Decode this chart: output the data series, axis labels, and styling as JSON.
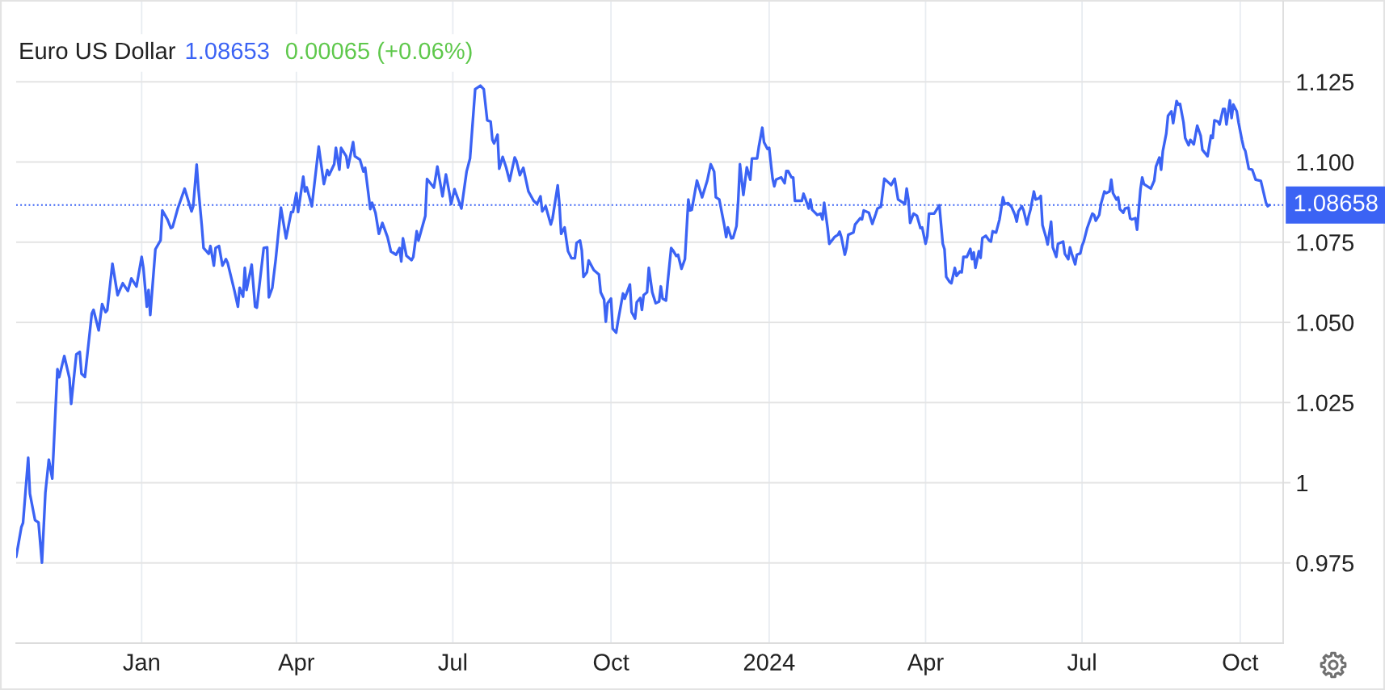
{
  "chart_data": {
    "type": "line",
    "title": "Euro US Dollar",
    "annotations": [
      "1.08653",
      "0.00065 (+0.06%)"
    ],
    "x": [
      "2022-10-20",
      "2022-10-23",
      "2022-10-24",
      "2022-10-27",
      "2022-10-28",
      "2022-10-31",
      "2022-11-02",
      "2022-11-04",
      "2022-11-06",
      "2022-11-08",
      "2022-11-10",
      "2022-11-13",
      "2022-11-14",
      "2022-11-17",
      "2022-11-20",
      "2022-11-21",
      "2022-11-24",
      "2022-11-26",
      "2022-11-27",
      "2022-11-29",
      "2022-12-03",
      "2022-12-04",
      "2022-12-07",
      "2022-12-09",
      "2022-12-11",
      "2022-12-12",
      "2022-12-15",
      "2022-12-18",
      "2022-12-21",
      "2022-12-24",
      "2022-12-26",
      "2022-12-29",
      "2023-01-01",
      "2023-01-02",
      "2023-01-04",
      "2023-01-05",
      "2023-01-06",
      "2023-01-09",
      "2023-01-12",
      "2023-01-13",
      "2023-01-16",
      "2023-01-18",
      "2023-01-19",
      "2023-01-22",
      "2023-01-26",
      "2023-01-30",
      "2023-01-31",
      "2023-02-02",
      "2023-02-03",
      "2023-02-05",
      "2023-02-06",
      "2023-02-09",
      "2023-02-10",
      "2023-02-12",
      "2023-02-13",
      "2023-02-15",
      "2023-02-17",
      "2023-02-19",
      "2023-02-20",
      "2023-02-22",
      "2023-02-24",
      "2023-02-26",
      "2023-02-27",
      "2023-03-01",
      "2023-03-02",
      "2023-03-03",
      "2023-03-06",
      "2023-03-08",
      "2023-03-09",
      "2023-03-13",
      "2023-03-15",
      "2023-03-16",
      "2023-03-18",
      "2023-03-20",
      "2023-03-23",
      "2023-03-26",
      "2023-03-29",
      "2023-03-30",
      "2023-04-01",
      "2023-04-02",
      "2023-04-05",
      "2023-04-06",
      "2023-04-07",
      "2023-04-10",
      "2023-04-14",
      "2023-04-17",
      "2023-04-19",
      "2023-04-20",
      "2023-04-23",
      "2023-04-24",
      "2023-04-26",
      "2023-04-27",
      "2023-04-30",
      "2023-05-01",
      "2023-05-04",
      "2023-05-05",
      "2023-05-08",
      "2023-05-10",
      "2023-05-11",
      "2023-05-14",
      "2023-05-15",
      "2023-05-17",
      "2023-05-19",
      "2023-05-21",
      "2023-05-24",
      "2023-05-26",
      "2023-05-29",
      "2023-05-31",
      "2023-06-01",
      "2023-06-02",
      "2023-06-04",
      "2023-06-07",
      "2023-06-08",
      "2023-06-10",
      "2023-06-11",
      "2023-06-15",
      "2023-06-16",
      "2023-06-20",
      "2023-06-22",
      "2023-06-25",
      "2023-06-27",
      "2023-06-29",
      "2023-06-30",
      "2023-07-02",
      "2023-07-06",
      "2023-07-09",
      "2023-07-11",
      "2023-07-14",
      "2023-07-17",
      "2023-07-19",
      "2023-07-21",
      "2023-07-23",
      "2023-07-24",
      "2023-07-25",
      "2023-07-27",
      "2023-07-28",
      "2023-07-30",
      "2023-08-01",
      "2023-08-03",
      "2023-08-06",
      "2023-08-07",
      "2023-08-09",
      "2023-08-11",
      "2023-08-14",
      "2023-08-17",
      "2023-08-19",
      "2023-08-21",
      "2023-08-22",
      "2023-08-24",
      "2023-08-27",
      "2023-08-28",
      "2023-08-31",
      "2023-09-01",
      "2023-09-02",
      "2023-09-04",
      "2023-09-06",
      "2023-09-08",
      "2023-09-10",
      "2023-09-11",
      "2023-09-13",
      "2023-09-14",
      "2023-09-15",
      "2023-09-17",
      "2023-09-18",
      "2023-09-21",
      "2023-09-24",
      "2023-09-25",
      "2023-09-27",
      "2023-09-28",
      "2023-09-29",
      "2023-10-01",
      "2023-10-02",
      "2023-10-04",
      "2023-10-05",
      "2023-10-08",
      "2023-10-09",
      "2023-10-12",
      "2023-10-13",
      "2023-10-15",
      "2023-10-16",
      "2023-10-18",
      "2023-10-19",
      "2023-10-20",
      "2023-10-22",
      "2023-10-23",
      "2023-10-25",
      "2023-10-27",
      "2023-10-29",
      "2023-10-30",
      "2023-10-31",
      "2023-11-02",
      "2023-11-03",
      "2023-11-05",
      "2023-11-06",
      "2023-11-08",
      "2023-11-09",
      "2023-11-11",
      "2023-11-13",
      "2023-11-15",
      "2023-11-16",
      "2023-11-17",
      "2023-11-20",
      "2023-11-23",
      "2023-11-26",
      "2023-11-28",
      "2023-11-30",
      "2023-12-01",
      "2023-12-03",
      "2023-12-06",
      "2023-12-07",
      "2023-12-08",
      "2023-12-10",
      "2023-12-11",
      "2023-12-13",
      "2023-12-14",
      "2023-12-15",
      "2023-12-17",
      "2023-12-19",
      "2023-12-21",
      "2023-12-22",
      "2023-12-25",
      "2023-12-26",
      "2023-12-28",
      "2023-12-29",
      "2023-12-31",
      "2024-01-01",
      "2024-01-03",
      "2024-01-04",
      "2024-01-05",
      "2024-01-08",
      "2024-01-10",
      "2024-01-11",
      "2024-01-12",
      "2024-01-14",
      "2024-01-15",
      "2024-01-16",
      "2024-01-20",
      "2024-01-21",
      "2024-01-22",
      "2024-01-24",
      "2024-01-25",
      "2024-01-26",
      "2024-01-29",
      "2024-01-31",
      "2024-02-01",
      "2024-02-02",
      "2024-02-04",
      "2024-02-05",
      "2024-02-08",
      "2024-02-10",
      "2024-02-11",
      "2024-02-12",
      "2024-02-14",
      "2024-02-15",
      "2024-02-16",
      "2024-02-19",
      "2024-02-20",
      "2024-02-23",
      "2024-02-24",
      "2024-02-25",
      "2024-02-28",
      "2024-03-01",
      "2024-03-03",
      "2024-03-04",
      "2024-03-06",
      "2024-03-08",
      "2024-03-10",
      "2024-03-12",
      "2024-03-14",
      "2024-03-16",
      "2024-03-18",
      "2024-03-20",
      "2024-03-21",
      "2024-03-22",
      "2024-03-23",
      "2024-03-25",
      "2024-03-27",
      "2024-03-29",
      "2024-03-30",
      "2024-04-01",
      "2024-04-02",
      "2024-04-03",
      "2024-04-06",
      "2024-04-09",
      "2024-04-11",
      "2024-04-12",
      "2024-04-13",
      "2024-04-15",
      "2024-04-16",
      "2024-04-18",
      "2024-04-19",
      "2024-04-21",
      "2024-04-22",
      "2024-04-23",
      "2024-04-25",
      "2024-04-27",
      "2024-04-28",
      "2024-04-29",
      "2024-04-30",
      "2024-05-02",
      "2024-05-03",
      "2024-05-04",
      "2024-05-06",
      "2024-05-08",
      "2024-05-09",
      "2024-05-10",
      "2024-05-12",
      "2024-05-14",
      "2024-05-16",
      "2024-05-17",
      "2024-05-19",
      "2024-05-21",
      "2024-05-23",
      "2024-05-24",
      "2024-05-25",
      "2024-05-27",
      "2024-05-28",
      "2024-05-30",
      "2024-05-31",
      "2024-06-01",
      "2024-06-03",
      "2024-06-04",
      "2024-06-06",
      "2024-06-07",
      "2024-06-08",
      "2024-06-10",
      "2024-06-11",
      "2024-06-13",
      "2024-06-14",
      "2024-06-16",
      "2024-06-17",
      "2024-06-20",
      "2024-06-21",
      "2024-06-23",
      "2024-06-24",
      "2024-06-25",
      "2024-06-27",
      "2024-06-28",
      "2024-06-30",
      "2024-07-01",
      "2024-07-02",
      "2024-07-04",
      "2024-07-07",
      "2024-07-08",
      "2024-07-09",
      "2024-07-11",
      "2024-07-12",
      "2024-07-14",
      "2024-07-15",
      "2024-07-17",
      "2024-07-18",
      "2024-07-19",
      "2024-07-21",
      "2024-07-22",
      "2024-07-23",
      "2024-07-25",
      "2024-07-26",
      "2024-07-28",
      "2024-07-29",
      "2024-07-30",
      "2024-08-01",
      "2024-08-02",
      "2024-08-04",
      "2024-08-05",
      "2024-08-06",
      "2024-08-08",
      "2024-08-10",
      "2024-08-12",
      "2024-08-13",
      "2024-08-15",
      "2024-08-16",
      "2024-08-17",
      "2024-08-19",
      "2024-08-20",
      "2024-08-22",
      "2024-08-23",
      "2024-08-25",
      "2024-08-26",
      "2024-08-27",
      "2024-08-29",
      "2024-08-30",
      "2024-09-01",
      "2024-09-02",
      "2024-09-04",
      "2024-09-06",
      "2024-09-08",
      "2024-09-09",
      "2024-09-12",
      "2024-09-14",
      "2024-09-15",
      "2024-09-16",
      "2024-09-18",
      "2024-09-19",
      "2024-09-21",
      "2024-09-22",
      "2024-09-23",
      "2024-09-25",
      "2024-09-26",
      "2024-09-27",
      "2024-09-29",
      "2024-09-30",
      "2024-10-02",
      "2024-10-03",
      "2024-10-04",
      "2024-10-06",
      "2024-10-08",
      "2024-10-10",
      "2024-10-13",
      "2024-10-16",
      "2024-10-17",
      "2024-10-18"
    ],
    "series": [
      {
        "color": "#3b63f4",
        "values": [
          0.9769,
          0.9861,
          0.9875,
          1.0078,
          0.9966,
          0.9883,
          0.9876,
          0.9751,
          0.9969,
          1.0072,
          1.0013,
          1.0354,
          1.0329,
          1.0395,
          1.0326,
          1.0246,
          1.04,
          1.0408,
          1.034,
          1.033,
          1.0528,
          1.0539,
          1.0475,
          1.0557,
          1.0532,
          1.0538,
          1.0683,
          1.0585,
          1.0622,
          1.0598,
          1.0637,
          1.0612,
          1.0704,
          1.067,
          1.0549,
          1.0601,
          1.0523,
          1.0728,
          1.0756,
          1.0849,
          1.0821,
          1.0794,
          1.0797,
          1.0855,
          1.0917,
          1.0846,
          1.0862,
          1.0992,
          1.0917,
          1.08,
          1.0732,
          1.0714,
          1.0738,
          1.0677,
          1.0732,
          1.0738,
          1.0677,
          1.0697,
          1.0686,
          1.0642,
          1.0598,
          1.0549,
          1.0608,
          1.058,
          1.067,
          1.0601,
          1.068,
          1.0549,
          1.0546,
          1.0732,
          1.0734,
          1.0578,
          1.0608,
          1.0697,
          1.0858,
          1.0762,
          1.0844,
          1.0844,
          1.0903,
          1.0844,
          1.0954,
          1.0908,
          1.0921,
          1.0862,
          1.1048,
          1.0931,
          1.0975,
          1.0959,
          1.0993,
          1.1044,
          1.0976,
          1.1044,
          1.1018,
          1.0983,
          1.1062,
          1.1018,
          1.1007,
          1.097,
          1.0982,
          1.0853,
          1.0873,
          1.0842,
          1.0776,
          1.081,
          1.0766,
          1.0721,
          1.0711,
          1.0732,
          1.069,
          1.0762,
          1.0708,
          1.0694,
          1.0704,
          1.0784,
          1.0755,
          1.0832,
          1.0947,
          1.092,
          1.0986,
          1.0893,
          1.0961,
          1.0903,
          1.0869,
          1.0915,
          1.0855,
          1.097,
          1.1011,
          1.1227,
          1.1238,
          1.1227,
          1.113,
          1.1126,
          1.1069,
          1.1058,
          1.1085,
          1.0979,
          1.1016,
          1.0983,
          1.0941,
          1.1014,
          1.1003,
          1.0959,
          1.0982,
          1.0908,
          1.0879,
          1.0869,
          1.0893,
          1.0846,
          1.0862,
          1.0805,
          1.0824,
          1.0927,
          1.0869,
          1.0776,
          1.0796,
          1.0722,
          1.07,
          1.07,
          1.0748,
          1.0755,
          1.0725,
          1.0642,
          1.0656,
          1.0693,
          1.0663,
          1.0649,
          1.0594,
          1.0571,
          1.0502,
          1.056,
          1.0574,
          1.048,
          1.0468,
          1.0501,
          1.059,
          1.0574,
          1.0618,
          1.0532,
          1.0512,
          1.0563,
          1.0576,
          1.0539,
          1.0585,
          1.0594,
          1.067,
          1.0594,
          1.056,
          1.0565,
          1.0612,
          1.0574,
          1.0568,
          1.0626,
          1.0732,
          1.0725,
          1.0707,
          1.0711,
          1.0667,
          1.0697,
          1.0883,
          1.0849,
          1.0851,
          1.0942,
          1.089,
          1.0942,
          1.0993,
          1.097,
          1.089,
          1.0883,
          1.08,
          1.0766,
          1.0796,
          1.0762,
          1.0763,
          1.08,
          1.0879,
          1.0993,
          1.0897,
          1.0983,
          1.0945,
          1.1011,
          1.1011,
          1.1048,
          1.1107,
          1.1062,
          1.1041,
          1.1044,
          1.0948,
          1.0924,
          1.0945,
          1.0952,
          1.0934,
          1.0972,
          1.0972,
          1.0952,
          1.0952,
          1.0879,
          1.0879,
          1.0901,
          1.0887,
          1.0855,
          1.0883,
          1.0851,
          1.0835,
          1.0839,
          1.0821,
          1.0873,
          1.0794,
          1.0745,
          1.0766,
          1.0773,
          1.0783,
          1.0766,
          1.0711,
          1.0732,
          1.0773,
          1.078,
          1.0805,
          1.0825,
          1.0821,
          1.0849,
          1.0842,
          1.0807,
          1.0838,
          1.0855,
          1.086,
          1.0948,
          1.0938,
          1.0928,
          1.0948,
          1.0883,
          1.0876,
          1.0869,
          1.0917,
          1.0883,
          1.081,
          1.0839,
          1.0832,
          1.0794,
          1.0796,
          1.0745,
          1.0769,
          1.0839,
          1.0839,
          1.0865,
          1.0745,
          1.0728,
          1.0642,
          1.0626,
          1.0622,
          1.067,
          1.0645,
          1.0659,
          1.0656,
          1.0704,
          1.0704,
          1.0729,
          1.0697,
          1.0718,
          1.067,
          1.0722,
          1.0701,
          1.0763,
          1.077,
          1.0755,
          1.0752,
          1.0784,
          1.078,
          1.0821,
          1.089,
          1.0869,
          1.0872,
          1.086,
          1.0835,
          1.0814,
          1.0846,
          1.0862,
          1.0849,
          1.0805,
          1.0832,
          1.0851,
          1.0908,
          1.0883,
          1.0887,
          1.0894,
          1.0803,
          1.0766,
          1.0743,
          1.0814,
          1.0734,
          1.0704,
          1.0745,
          1.0752,
          1.0714,
          1.0697,
          1.0734,
          1.0714,
          1.0681,
          1.0711,
          1.0715,
          1.0739,
          1.0752,
          1.0794,
          1.0839,
          1.0835,
          1.0817,
          1.0835,
          1.0869,
          1.0908,
          1.0903,
          1.0908,
          1.0945,
          1.0903,
          1.0883,
          1.089,
          1.0853,
          1.0842,
          1.0855,
          1.0858,
          1.0824,
          1.0821,
          1.0825,
          1.0789,
          1.0915,
          1.0952,
          1.0931,
          1.0924,
          1.0917,
          1.0942,
          1.0986,
          1.1014,
          1.0976,
          1.1034,
          1.1089,
          1.1144,
          1.1158,
          1.1121,
          1.119,
          1.1179,
          1.1181,
          1.1124,
          1.1075,
          1.1052,
          1.1069,
          1.1055,
          1.1113,
          1.1082,
          1.1038,
          1.1018,
          1.1082,
          1.1075,
          1.113,
          1.1126,
          1.1117,
          1.1165,
          1.1165,
          1.1117,
          1.1192,
          1.1137,
          1.1179,
          1.1158,
          1.1124,
          1.1069,
          1.1045,
          1.1034,
          1.0979,
          1.0976,
          1.0945,
          1.0941,
          1.0873,
          1.0862,
          1.0866
        ]
      }
    ],
    "xlim": [
      "2022-10-20",
      "2024-10-26"
    ],
    "xticks": [
      {
        "value": "2023-01-01",
        "label": "Jan"
      },
      {
        "value": "2023-04-01",
        "label": "Apr"
      },
      {
        "value": "2023-07-01",
        "label": "Jul"
      },
      {
        "value": "2023-10-01",
        "label": "Oct"
      },
      {
        "value": "2024-01-01",
        "label": "2024"
      },
      {
        "value": "2024-04-01",
        "label": "Apr"
      },
      {
        "value": "2024-07-01",
        "label": "Jul"
      },
      {
        "value": "2024-10-01",
        "label": "Oct"
      }
    ],
    "ylim": [
      0.95,
      1.15
    ],
    "yticks": [
      0.975,
      1,
      1.025,
      {
        "value": 1.05,
        "label": "1.050"
      },
      1.075,
      {
        "value": 1.1,
        "label": "1.100"
      },
      1.125
    ],
    "ref_lines": [
      {
        "axis": "y",
        "value": 1.08658,
        "label": "1.08658",
        "color": "#3b63f4",
        "line_style": "dotted"
      }
    ],
    "grid": true,
    "line_style": "solid"
  }
}
